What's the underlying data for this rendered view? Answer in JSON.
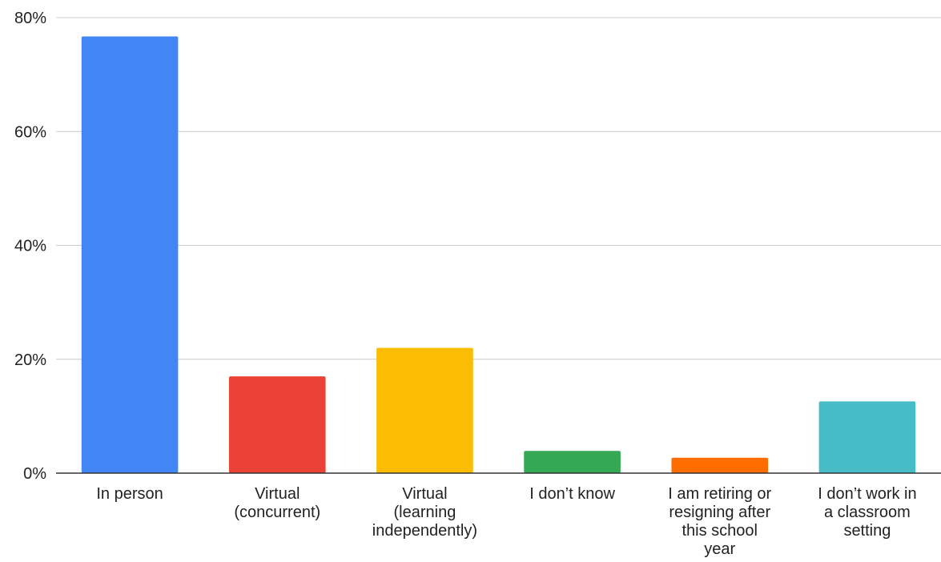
{
  "chart_data": {
    "type": "bar",
    "title": "",
    "xlabel": "",
    "ylabel": "",
    "categories": [
      "In person",
      "Virtual (concurrent)",
      "Virtual (learning independently)",
      "I don’t know",
      "I am retiring or resigning after this school year",
      "I don’t work in a classroom setting"
    ],
    "category_lines": [
      [
        "In person"
      ],
      [
        "Virtual",
        "(concurrent)"
      ],
      [
        "Virtual",
        "(learning",
        "independently)"
      ],
      [
        "I don’t know"
      ],
      [
        "I am retiring or",
        "resigning after",
        "this school",
        "year"
      ],
      [
        "I don’t work in",
        "a classroom",
        "setting"
      ]
    ],
    "values": [
      76.7,
      17.0,
      22.0,
      3.9,
      2.7,
      12.6
    ],
    "colors": [
      "#4285f4",
      "#ea4335",
      "#fbbc04",
      "#34a853",
      "#ff6d01",
      "#46bdc6"
    ],
    "ylim": [
      0,
      80
    ],
    "yticks": [
      0,
      20,
      40,
      60,
      80
    ],
    "ytick_labels": [
      "0%",
      "20%",
      "40%",
      "60%",
      "80%"
    ],
    "grid": true,
    "legend": "none"
  }
}
